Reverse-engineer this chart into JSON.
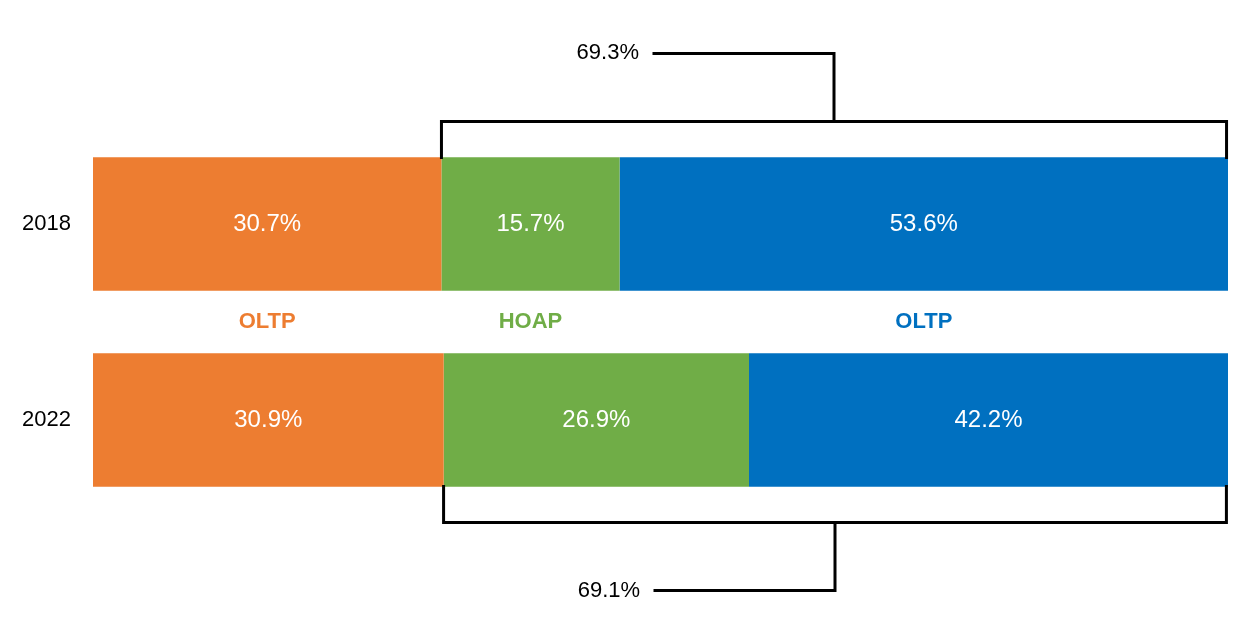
{
  "chart_data": {
    "type": "bar",
    "orientation": "horizontal",
    "stacked": true,
    "categories": [
      "2018",
      "2022"
    ],
    "series": [
      {
        "name": "OLTP",
        "color": "#ed7d31",
        "values": [
          30.7,
          30.9
        ],
        "value_labels": [
          "30.7%",
          "30.9%"
        ]
      },
      {
        "name": "HOAP",
        "color": "#70ad47",
        "values": [
          15.7,
          26.9
        ],
        "value_labels": [
          "15.7%",
          "26.9%"
        ]
      },
      {
        "name": "OLTP",
        "color": "#0070c0",
        "values": [
          53.6,
          42.2
        ],
        "value_labels": [
          "53.6%",
          "42.2%"
        ]
      }
    ],
    "xlim": [
      0,
      100
    ],
    "tick_labels": "y",
    "legend": false,
    "annotations": [
      "69.3%",
      "69.1%"
    ]
  }
}
